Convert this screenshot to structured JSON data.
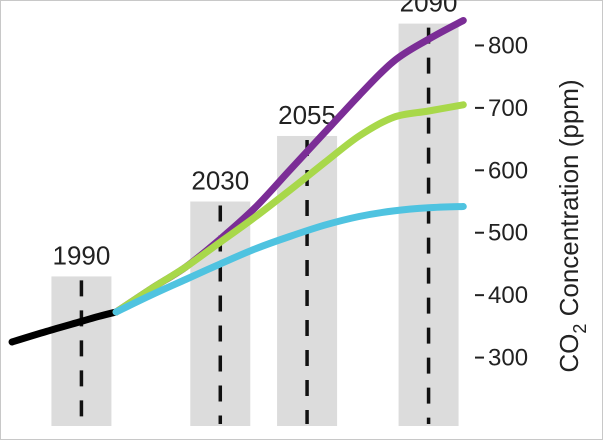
{
  "chart_data": {
    "type": "line",
    "title": "",
    "ylabel": {
      "prefix": "CO",
      "subscript": "2",
      "suffix": " Concentration (ppm)"
    },
    "ylim": [
      200,
      860
    ],
    "yticks": [
      300,
      400,
      500,
      600,
      700,
      800
    ],
    "xlim": [
      1970,
      2110
    ],
    "period_markers": [
      {
        "label": "1990",
        "year": 1990,
        "top": 430
      },
      {
        "label": "2030",
        "year": 2030,
        "top": 550
      },
      {
        "label": "2055",
        "year": 2055,
        "top": 655
      },
      {
        "label": "2090",
        "year": 2090,
        "top": 835
      }
    ],
    "series": [
      {
        "color": "#000000",
        "points": [
          [
            1970,
            325
          ],
          [
            1980,
            342
          ],
          [
            1990,
            358
          ],
          [
            1995,
            366
          ],
          [
            2000,
            373
          ]
        ]
      },
      {
        "color": "#7b2d96",
        "points": [
          [
            2000,
            373
          ],
          [
            2010,
            410
          ],
          [
            2020,
            445
          ],
          [
            2030,
            490
          ],
          [
            2040,
            540
          ],
          [
            2050,
            600
          ],
          [
            2060,
            660
          ],
          [
            2070,
            720
          ],
          [
            2080,
            775
          ],
          [
            2090,
            810
          ],
          [
            2100,
            840
          ]
        ]
      },
      {
        "color": "#a8d84a",
        "points": [
          [
            2000,
            373
          ],
          [
            2010,
            410
          ],
          [
            2020,
            445
          ],
          [
            2030,
            485
          ],
          [
            2040,
            525
          ],
          [
            2050,
            568
          ],
          [
            2060,
            612
          ],
          [
            2070,
            655
          ],
          [
            2080,
            685
          ],
          [
            2090,
            695
          ],
          [
            2100,
            705
          ]
        ]
      },
      {
        "color": "#4fc3e0",
        "points": [
          [
            2000,
            373
          ],
          [
            2010,
            400
          ],
          [
            2020,
            425
          ],
          [
            2030,
            450
          ],
          [
            2040,
            474
          ],
          [
            2050,
            494
          ],
          [
            2060,
            512
          ],
          [
            2070,
            526
          ],
          [
            2080,
            535
          ],
          [
            2090,
            540
          ],
          [
            2100,
            542
          ]
        ]
      }
    ]
  }
}
